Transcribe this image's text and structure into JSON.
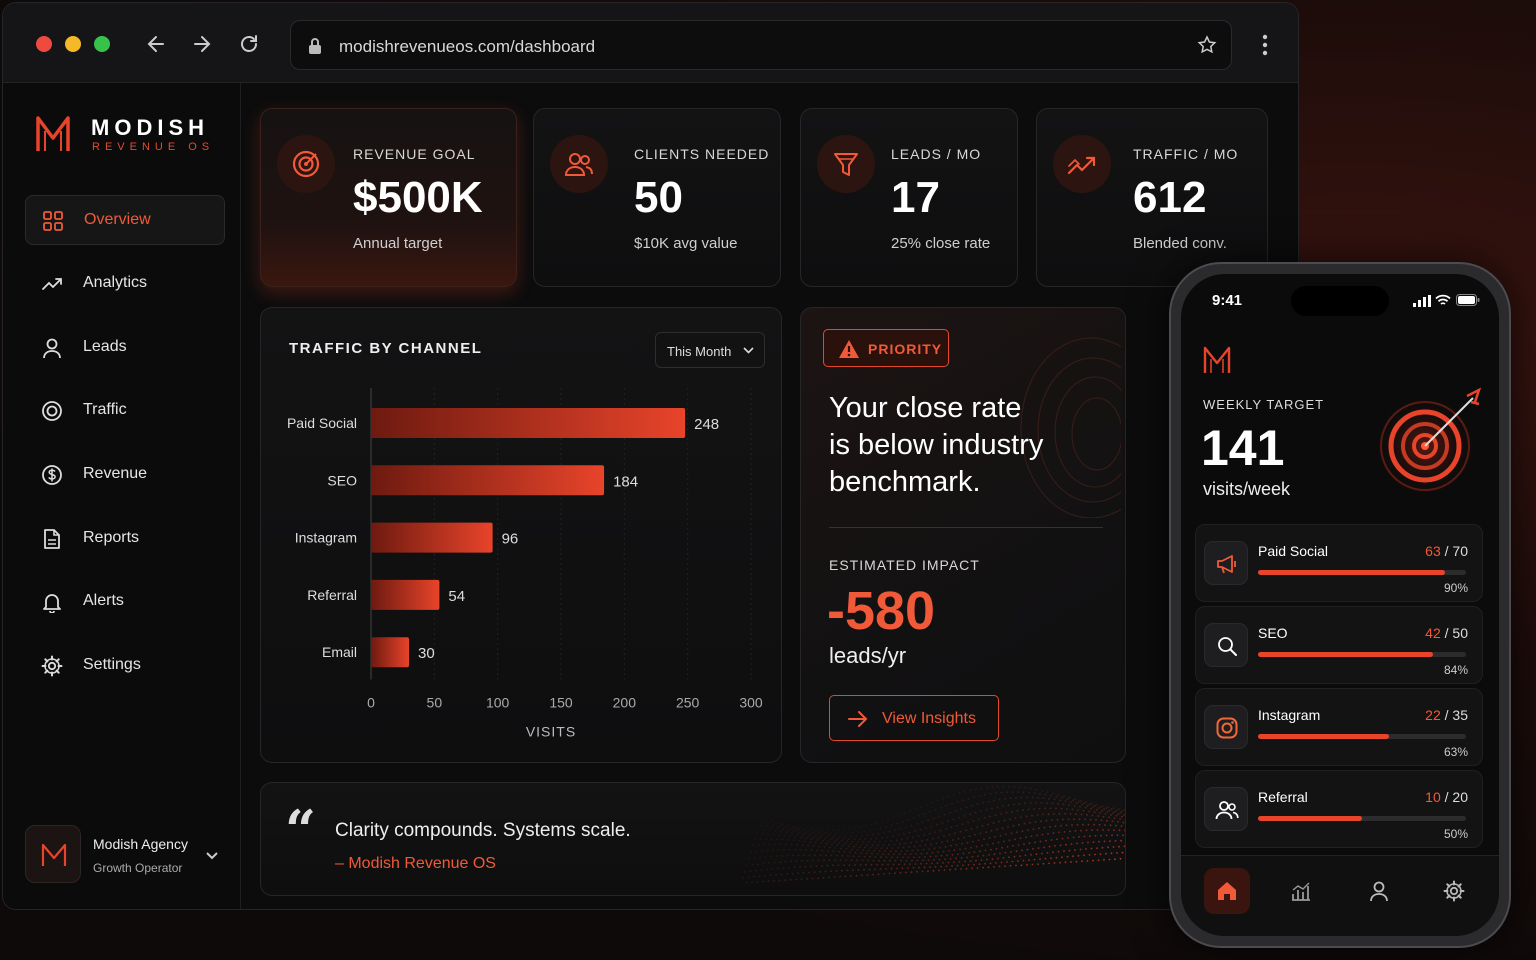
{
  "browser": {
    "url": "modishrevenueos.com/dashboard",
    "icons": [
      "back-icon",
      "forward-icon",
      "reload-icon",
      "lock-icon",
      "star-icon",
      "kebab-menu-icon"
    ]
  },
  "brand": {
    "name": "MODISH",
    "sub": "REVENUE OS",
    "accent": "#e8442a"
  },
  "sidebar": {
    "items": [
      {
        "label": "Overview",
        "icon": "grid-icon",
        "active": true
      },
      {
        "label": "Analytics",
        "icon": "trend-icon"
      },
      {
        "label": "Leads",
        "icon": "user-icon"
      },
      {
        "label": "Traffic",
        "icon": "target-icon"
      },
      {
        "label": "Revenue",
        "icon": "dollar-icon"
      },
      {
        "label": "Reports",
        "icon": "document-icon"
      },
      {
        "label": "Alerts",
        "icon": "bell-icon"
      },
      {
        "label": "Settings",
        "icon": "gear-icon"
      }
    ],
    "account": {
      "name": "Modish Agency",
      "role": "Growth Operator"
    }
  },
  "kpis": [
    {
      "label": "REVENUE GOAL",
      "value": "$500K",
      "sub": "Annual target",
      "icon": "target-icon"
    },
    {
      "label": "CLIENTS NEEDED",
      "value": "50",
      "sub": "$10K avg value",
      "icon": "users-icon"
    },
    {
      "label": "LEADS / MO",
      "value": "17",
      "sub": "25% close rate",
      "icon": "funnel-icon"
    },
    {
      "label": "TRAFFIC / MO",
      "value": "612",
      "sub": "Blended conv.",
      "icon": "trend-up-icon"
    }
  ],
  "traffic_panel": {
    "title": "TRAFFIC BY CHANNEL",
    "period": "This Month"
  },
  "chart_data": {
    "type": "bar",
    "orientation": "horizontal",
    "title": "TRAFFIC BY CHANNEL",
    "categories": [
      "Paid Social",
      "SEO",
      "Instagram",
      "Referral",
      "Email"
    ],
    "values": [
      248,
      184,
      96,
      54,
      30
    ],
    "xlabel": "VISITS",
    "xlim": [
      0,
      300
    ],
    "xticks": [
      0,
      50,
      100,
      150,
      200,
      250,
      300
    ],
    "grid": true,
    "color": "#e8442a"
  },
  "priority": {
    "badge": "PRIORITY",
    "lines": [
      "Your close rate",
      "is below industry",
      "benchmark."
    ],
    "impact_label": "ESTIMATED IMPACT",
    "impact_value": "-580",
    "impact_unit": "leads/yr",
    "button": "View Insights"
  },
  "quote": {
    "text": "Clarity compounds. Systems scale.",
    "author": "– Modish Revenue OS"
  },
  "phone": {
    "time": "9:41",
    "target_label": "WEEKLY TARGET",
    "target_value": "141",
    "target_unit": "visits/week",
    "channels": [
      {
        "name": "Paid Social",
        "current": "63",
        "total": "/ 70",
        "pct": "90%",
        "fraction": 0.9,
        "icon": "megaphone-icon"
      },
      {
        "name": "SEO",
        "current": "42",
        "total": "/ 50",
        "pct": "84%",
        "fraction": 0.84,
        "icon": "search-icon"
      },
      {
        "name": "Instagram",
        "current": "22",
        "total": "/ 35",
        "pct": "63%",
        "fraction": 0.63,
        "icon": "instagram-icon"
      },
      {
        "name": "Referral",
        "current": "10",
        "total": "/ 20",
        "pct": "50%",
        "fraction": 0.5,
        "icon": "users-icon"
      }
    ],
    "tabs": [
      "home-icon",
      "bar-chart-icon",
      "user-icon",
      "gear-icon"
    ]
  }
}
